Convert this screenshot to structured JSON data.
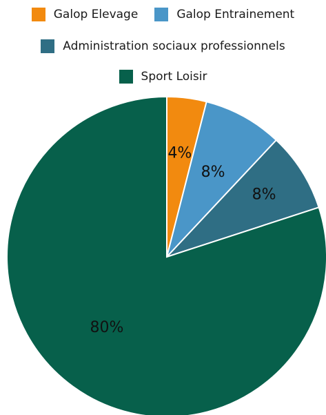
{
  "chart_data": {
    "type": "pie",
    "categories": [
      "Galop Elevage",
      "Galop Entrainement",
      "Administration sociaux professionnels",
      "Sport Loisir"
    ],
    "values": [
      4,
      8,
      8,
      80
    ],
    "data_labels": [
      "4%",
      "8%",
      "8%",
      "80%"
    ],
    "colors": [
      "#f28a0f",
      "#4a96c8",
      "#2f6e84",
      "#07604b"
    ],
    "title": "",
    "legend_placement": "top"
  },
  "legend": {
    "items": [
      {
        "label": "Galop Elevage",
        "color": "#f28a0f"
      },
      {
        "label": "Galop Entrainement",
        "color": "#4a96c8"
      },
      {
        "label": "Administration sociaux professionnels",
        "color": "#2f6e84"
      },
      {
        "label": "Sport Loisir",
        "color": "#07604b"
      }
    ]
  }
}
